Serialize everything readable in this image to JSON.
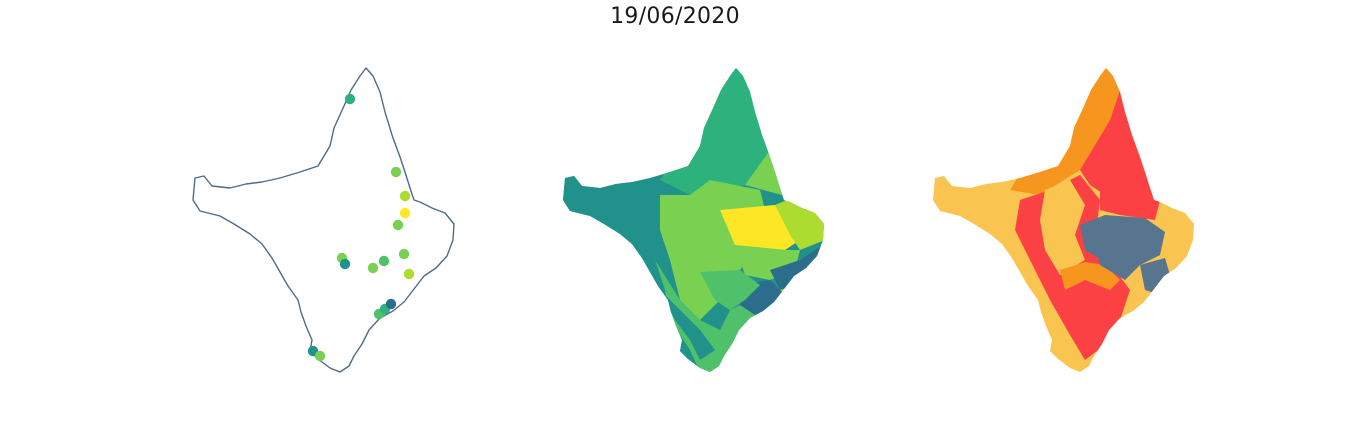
{
  "title": "19/06/2020",
  "colors": {
    "outline": "#4f6b8a",
    "viridis": [
      "#2c6d8e",
      "#21918c",
      "#2db27d",
      "#4fc16b",
      "#7ad151",
      "#addc30",
      "#fde725"
    ],
    "categorical": {
      "yellow": "#f9c550",
      "orange": "#f7961f",
      "red": "#fb4143",
      "slate": "#587590"
    }
  },
  "panels": [
    "points-map",
    "viridis-choropleth",
    "categorical-choropleth"
  ],
  "points": [
    {
      "id": "p1",
      "level": 2
    },
    {
      "id": "p2",
      "level": 4
    },
    {
      "id": "p3",
      "level": 5
    },
    {
      "id": "p4",
      "level": 6
    },
    {
      "id": "p5",
      "level": 4
    },
    {
      "id": "p6",
      "level": 4
    },
    {
      "id": "p7",
      "level": 1
    },
    {
      "id": "p8",
      "level": 4
    },
    {
      "id": "p9",
      "level": 3
    },
    {
      "id": "p10",
      "level": 4
    },
    {
      "id": "p11",
      "level": 5
    },
    {
      "id": "p12",
      "level": 3
    },
    {
      "id": "p13",
      "level": 2
    },
    {
      "id": "p14",
      "level": 0
    },
    {
      "id": "p15",
      "level": 1
    },
    {
      "id": "p16",
      "level": 4
    }
  ]
}
